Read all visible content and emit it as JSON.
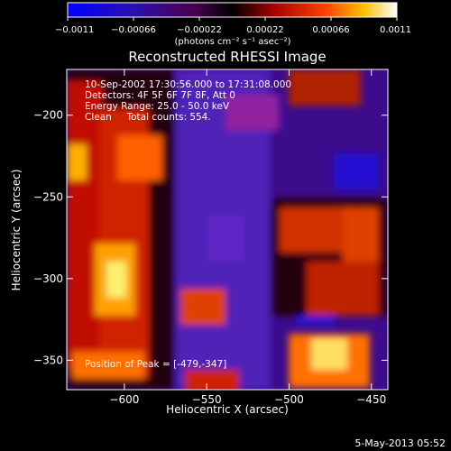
{
  "chart_data": {
    "type": "heatmap",
    "title": "Reconstructed RHESSI Image",
    "xlabel": "Heliocentric X (arcsec)",
    "ylabel": "Heliocentric Y (arcsec)",
    "xlim": [
      -635,
      -440
    ],
    "ylim": [
      -368,
      -172
    ],
    "xticks": [
      -600,
      -550,
      -500,
      -450
    ],
    "yticks": [
      -200,
      -250,
      -300,
      -350
    ],
    "colorbar": {
      "range": [
        -0.0011,
        0.0011
      ],
      "ticks": [
        "-0.0011",
        "-0.00066",
        "-0.00022",
        "0.00022",
        "0.00066",
        "0.0011"
      ],
      "label": "(photons cm⁻² s⁻¹ asec⁻²)",
      "colormap": "blue-purple-red-yellow-white"
    },
    "annotations": [
      "10-Sep-2002 17:30:56.000 to 17:31:08.000",
      "Detectors: 4F 5F 6F 7F 8F, Att 0",
      "Energy Range: 25.0 - 50.0 keV",
      "Clean     Total counts: 554.",
      "Position of Peak = [-479,-347]"
    ],
    "peak_position": [
      -479,
      -347
    ],
    "grid": false
  },
  "footer": {
    "date": "5-May-2013 05:52"
  },
  "colors": {
    "background": "#000000",
    "text": "#ffffff"
  }
}
